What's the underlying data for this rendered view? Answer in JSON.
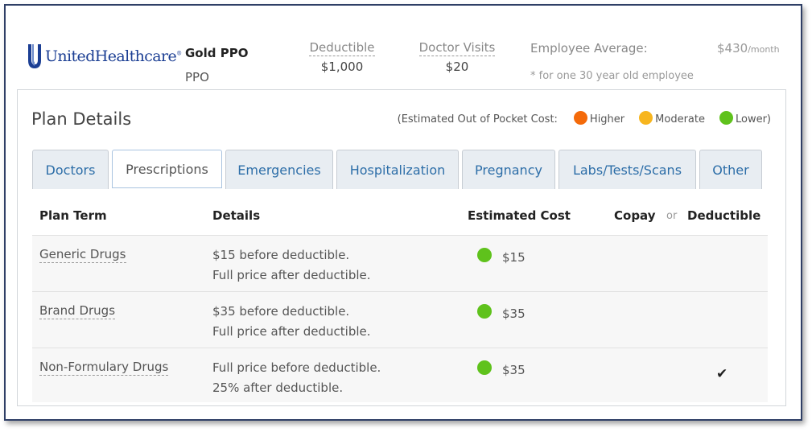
{
  "header": {
    "logo_text": "UnitedHealthcare",
    "logo_mark": "®",
    "plan_name": "Gold PPO",
    "plan_type": "PPO",
    "deductible_label": "Deductible",
    "deductible_value": "$1,000",
    "doctor_visits_label": "Doctor Visits",
    "doctor_visits_value": "$20",
    "employee_average_label": "Employee Average:",
    "employee_average_value": "$430",
    "employee_average_unit": "/month",
    "employee_average_note": "* for one 30 year old employee"
  },
  "panel": {
    "title": "Plan Details",
    "legend": {
      "prefix": "(Estimated Out of Pocket Cost:",
      "items": [
        {
          "label": "Higher",
          "color": "#f46a0a"
        },
        {
          "label": "Moderate",
          "color": "#f7b51e"
        },
        {
          "label": "Lower)",
          "color": "#5fc21c"
        }
      ]
    },
    "tabs": [
      {
        "label": "Doctors",
        "active": false
      },
      {
        "label": "Prescriptions",
        "active": true
      },
      {
        "label": "Emergencies",
        "active": false
      },
      {
        "label": "Hospitalization",
        "active": false
      },
      {
        "label": "Pregnancy",
        "active": false
      },
      {
        "label": "Labs/Tests/Scans",
        "active": false
      },
      {
        "label": "Other",
        "active": false
      }
    ],
    "table": {
      "headers": {
        "plan_term": "Plan Term",
        "details": "Details",
        "estimated_cost": "Estimated Cost",
        "copay": "Copay",
        "or": "or",
        "deductible": "Deductible"
      },
      "rows": [
        {
          "term": "Generic Drugs",
          "details_line1": "$15 before deductible.",
          "details_line2": "Full price after deductible.",
          "cost": "$15",
          "cost_level_color": "#5fc21c",
          "deductible_check": ""
        },
        {
          "term": "Brand Drugs",
          "details_line1": "$35 before deductible.",
          "details_line2": "Full price after deductible.",
          "cost": "$35",
          "cost_level_color": "#5fc21c",
          "deductible_check": ""
        },
        {
          "term": "Non-Formulary Drugs",
          "details_line1": "Full price before deductible.",
          "details_line2": "25% after deductible.",
          "cost": "$35",
          "cost_level_color": "#5fc21c",
          "deductible_check": "✔"
        }
      ]
    }
  },
  "icons": {
    "logo": "unitedhealthcare-shield-icon",
    "cost_level": "circle-dot-icon",
    "deductible": "checkmark-icon"
  }
}
